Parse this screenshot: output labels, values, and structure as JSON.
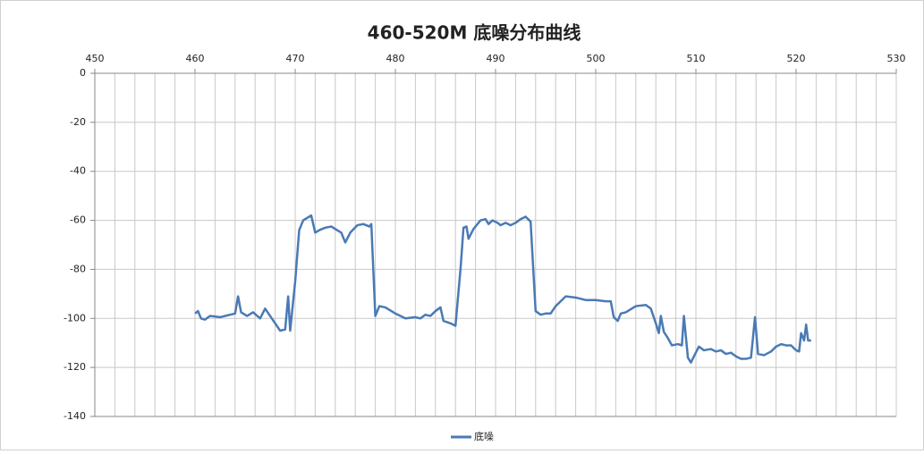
{
  "chart_data": {
    "type": "line",
    "title": "460-520M 底噪分布曲线",
    "x": [
      460.0,
      460.3,
      460.6,
      461.0,
      461.5,
      462.5,
      463.5,
      464.0,
      464.3,
      464.6,
      465.2,
      465.8,
      466.5,
      467.0,
      467.5,
      468.0,
      468.5,
      469.0,
      469.3,
      469.5,
      470.0,
      470.4,
      470.8,
      471.2,
      471.6,
      472.0,
      472.4,
      473.0,
      473.6,
      474.2,
      474.6,
      475.0,
      475.5,
      476.2,
      476.8,
      477.4,
      477.6,
      478.0,
      478.4,
      479.0,
      480.0,
      481.0,
      482.0,
      482.5,
      483.0,
      483.5,
      484.0,
      484.5,
      484.8,
      485.5,
      486.0,
      486.5,
      486.8,
      487.1,
      487.3,
      487.8,
      488.5,
      489.0,
      489.3,
      489.7,
      490.2,
      490.5,
      491.0,
      491.5,
      492.0,
      492.5,
      493.0,
      493.5,
      494.0,
      494.5,
      495.0,
      495.5,
      496.0,
      496.5,
      497.0,
      498.0,
      499.0,
      500.0,
      501.0,
      501.5,
      501.8,
      502.2,
      502.5,
      503.0,
      504.0,
      505.0,
      505.5,
      506.0,
      506.3,
      506.5,
      506.8,
      507.2,
      507.6,
      508.2,
      508.6,
      508.8,
      509.2,
      509.5,
      509.8,
      510.3,
      510.8,
      511.5,
      512.0,
      512.5,
      513.0,
      513.5,
      514.0,
      514.5,
      515.0,
      515.5,
      515.9,
      516.2,
      516.8,
      517.5,
      518.0,
      518.5,
      519.0,
      519.5,
      520.0,
      520.3,
      520.5,
      520.8,
      521.0,
      521.2,
      521.5
    ],
    "series": [
      {
        "name": "底噪",
        "color": "#4a7ab5",
        "values": [
          -98,
          -97,
          -100,
          -100.5,
          -99,
          -99.5,
          -98.5,
          -98,
          -91,
          -97.5,
          -99,
          -97.5,
          -100,
          -96,
          -99,
          -102,
          -105,
          -104.5,
          -91,
          -105,
          -85,
          -64,
          -60,
          -59,
          -58,
          -65,
          -64,
          -63,
          -62.5,
          -64,
          -65,
          -69,
          -65,
          -62,
          -61.5,
          -62.5,
          -61.5,
          -99,
          -95,
          -95.5,
          -98,
          -100,
          -99.5,
          -100,
          -98.5,
          -99,
          -97,
          -95.5,
          -101,
          -102,
          -103,
          -80,
          -63,
          -62.5,
          -67.5,
          -63.5,
          -60,
          -59.5,
          -61.5,
          -60,
          -61,
          -62,
          -61,
          -62,
          -61,
          -59.5,
          -58.5,
          -60.5,
          -97,
          -98.5,
          -98,
          -98,
          -95,
          -93,
          -91,
          -91.5,
          -92.5,
          -92.5,
          -93,
          -93,
          -99.5,
          -101,
          -98,
          -97.5,
          -95,
          -94.5,
          -96,
          -102,
          -106,
          -99,
          -105.5,
          -108,
          -111,
          -110.5,
          -111,
          -99,
          -116,
          -118,
          -115.5,
          -111.5,
          -113,
          -112.5,
          -113.5,
          -113,
          -114.5,
          -114,
          -115.5,
          -116.5,
          -116.5,
          -116,
          -99.5,
          -114.5,
          -115,
          -113.5,
          -111.5,
          -110.5,
          -111,
          -111,
          -113,
          -113.5,
          -106,
          -109,
          -102.5,
          -109,
          -109
        ]
      }
    ],
    "xlim": [
      450,
      530
    ],
    "xticks": [
      450,
      460,
      470,
      480,
      490,
      500,
      510,
      520,
      530
    ],
    "minor_grid_step": 2,
    "ylim": [
      -140,
      0
    ],
    "yticks": [
      0,
      -20,
      -40,
      -60,
      -80,
      -100,
      -120,
      -140
    ],
    "grid": true,
    "legend": "bottom"
  }
}
